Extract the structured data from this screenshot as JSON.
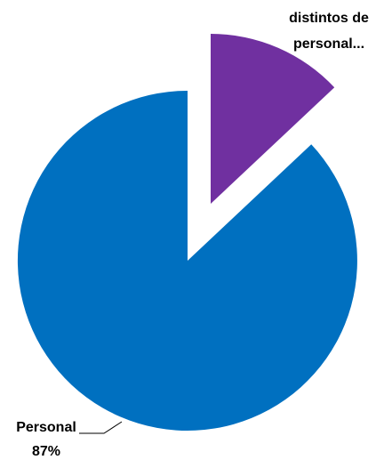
{
  "chart_data": {
    "type": "pie",
    "exploded": true,
    "slices": [
      {
        "name": "Personal",
        "label_lines": [
          "Personal",
          "87%"
        ],
        "value": 87,
        "color": "#0070C0"
      },
      {
        "name": "distintos de personal...",
        "label_lines": [
          "distintos de",
          "personal..."
        ],
        "value": 13,
        "color": "#7030A0"
      }
    ]
  }
}
